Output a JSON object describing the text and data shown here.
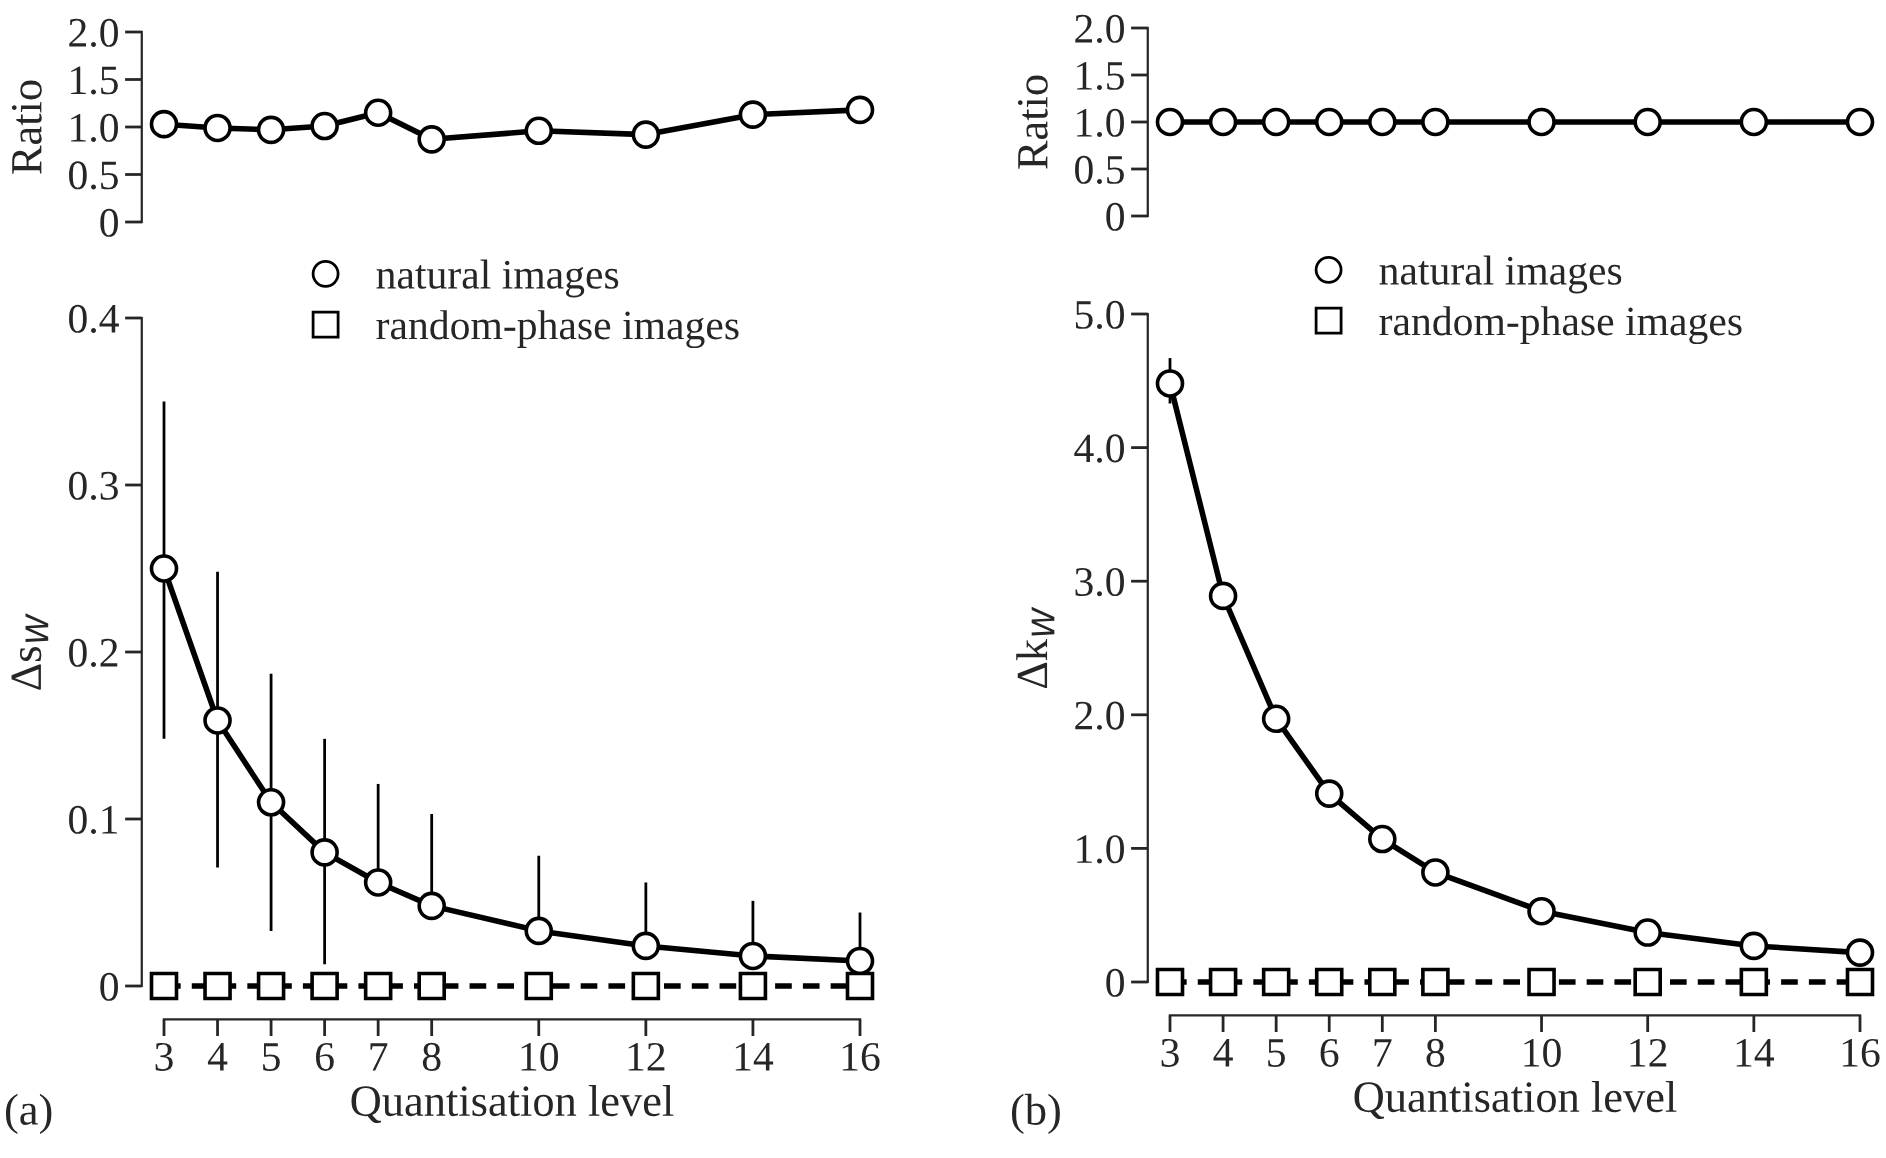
{
  "chart_data": [
    {
      "type": "line",
      "ylabel": "Ratio",
      "x": [
        3,
        4,
        5,
        6,
        7,
        8,
        10,
        12,
        14,
        16
      ],
      "xlim": [
        3,
        16
      ],
      "ylim": [
        0,
        2.0
      ],
      "yticks": [
        0,
        0.5,
        {
          "value": 1.0,
          "label": "1.0"
        },
        1.5,
        {
          "value": 2.0,
          "label": "2.0"
        }
      ],
      "tick_labels": "y",
      "grid": false,
      "legend": false,
      "series": [
        {
          "color": "#000000",
          "marker": "circle",
          "line_style": "solid",
          "values": [
            1.03,
            0.99,
            0.97,
            1.01,
            1.15,
            0.87,
            0.96,
            0.92,
            1.13,
            1.18
          ]
        }
      ]
    },
    {
      "type": "line",
      "ylabel": "Δs$_{W}$",
      "xlabel": "Quantisation level",
      "x": [
        3,
        4,
        5,
        6,
        7,
        8,
        10,
        12,
        14,
        16
      ],
      "xlim": [
        3,
        16
      ],
      "xticks": [
        3,
        4,
        5,
        6,
        7,
        8,
        10,
        12,
        14,
        16
      ],
      "ylim": [
        0,
        0.4
      ],
      "yticks": [
        0,
        0.1,
        0.2,
        0.3,
        0.4
      ],
      "grid": false,
      "legend": "top",
      "annotations": [
        "(a)"
      ],
      "series": [
        {
          "name": "natural images",
          "color": "#000000",
          "marker": "circle",
          "line_style": "solid",
          "values": [
            0.25,
            0.159,
            0.11,
            0.08,
            0.062,
            0.048,
            0.033,
            0.024,
            0.018,
            0.015
          ],
          "errors": [
            [
              0.148,
              0.35
            ],
            [
              0.071,
              0.248
            ],
            [
              0.033,
              0.187
            ],
            [
              0.013,
              0.148
            ],
            [
              0.062,
              0.121
            ],
            [
              0.048,
              0.103
            ],
            [
              0.033,
              0.078
            ],
            [
              0.024,
              0.062
            ],
            [
              0.018,
              0.051
            ],
            [
              0.015,
              0.044
            ]
          ]
        },
        {
          "name": "random-phase images",
          "color": "#000000",
          "marker": "square",
          "line_style": "dashed",
          "values": [
            0,
            0,
            0,
            0,
            0,
            0,
            0,
            0,
            0,
            0
          ]
        }
      ]
    },
    {
      "type": "line",
      "ylabel": "Ratio",
      "x": [
        3,
        4,
        5,
        6,
        7,
        8,
        10,
        12,
        14,
        16
      ],
      "xlim": [
        3,
        16
      ],
      "ylim": [
        0,
        2.0
      ],
      "yticks": [
        0,
        0.5,
        {
          "value": 1.0,
          "label": "1.0"
        },
        1.5,
        {
          "value": 2.0,
          "label": "2.0"
        }
      ],
      "tick_labels": "y",
      "grid": false,
      "legend": false,
      "series": [
        {
          "color": "#000000",
          "marker": "circle",
          "line_style": "solid",
          "values": [
            1.0,
            1.0,
            1.0,
            1.0,
            1.0,
            1.0,
            1.0,
            1.0,
            1.0,
            1.0
          ]
        }
      ]
    },
    {
      "type": "line",
      "ylabel": "Δk$_{W}$",
      "xlabel": "Quantisation level",
      "x": [
        3,
        4,
        5,
        6,
        7,
        8,
        10,
        12,
        14,
        16
      ],
      "xlim": [
        3,
        16
      ],
      "xticks": [
        3,
        4,
        5,
        6,
        7,
        8,
        10,
        12,
        14,
        16
      ],
      "ylim": [
        0,
        5.0
      ],
      "yticks": [
        0,
        {
          "value": 1.0,
          "label": "1.0"
        },
        {
          "value": 2.0,
          "label": "2.0"
        },
        {
          "value": 3.0,
          "label": "3.0"
        },
        {
          "value": 4.0,
          "label": "4.0"
        },
        {
          "value": 5.0,
          "label": "5.0"
        }
      ],
      "grid": false,
      "legend": "top",
      "annotations": [
        "(b)"
      ],
      "series": [
        {
          "name": "natural images",
          "color": "#000000",
          "marker": "circle",
          "line_style": "solid",
          "values": [
            4.48,
            2.89,
            1.97,
            1.41,
            1.07,
            0.82,
            0.53,
            0.37,
            0.27,
            0.22
          ],
          "errors": [
            [
              4.33,
              4.67
            ],
            null,
            null,
            null,
            null,
            null,
            null,
            null,
            null,
            null
          ]
        },
        {
          "name": "random-phase images",
          "color": "#000000",
          "marker": "square",
          "line_style": "dashed",
          "values": [
            0,
            0,
            0,
            0,
            0,
            0,
            0,
            0,
            0,
            0
          ]
        }
      ]
    }
  ]
}
